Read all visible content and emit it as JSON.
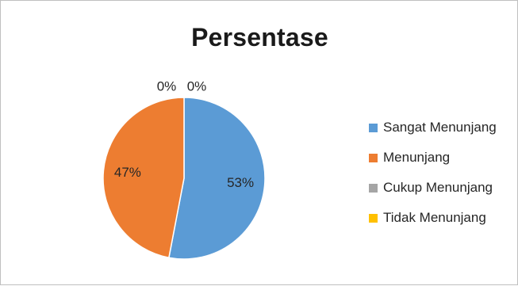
{
  "chart_data": {
    "type": "pie",
    "title": "Persentase",
    "categories": [
      "Sangat Menunjang",
      "Menunjang",
      "Cukup Menunjang",
      "Tidak Menunjang"
    ],
    "values": [
      53,
      47,
      0,
      0
    ],
    "data_labels": [
      "53%",
      "47%",
      "0%",
      "0%"
    ],
    "colors": [
      "#5b9bd5",
      "#ed7d31",
      "#a5a5a5",
      "#ffc000"
    ],
    "legend_position": "right"
  }
}
